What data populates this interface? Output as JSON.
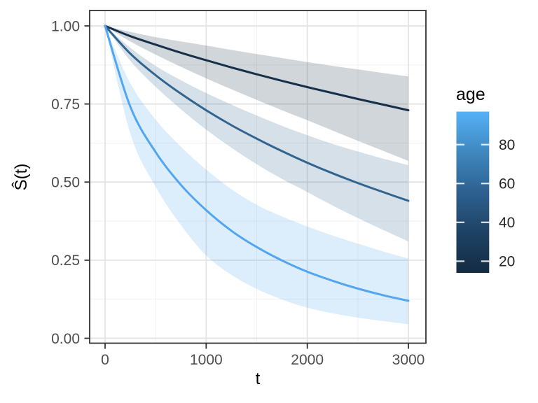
{
  "figure": {
    "background": "#FFFFFF",
    "panel_border_color": "#333333",
    "grid_major_color": "#E3E3E3",
    "grid_minor_color": "#F1F1F1"
  },
  "chart_data": {
    "type": "line",
    "title": "",
    "xlabel": "t",
    "ylabel": "Ŝ(t)",
    "grid": "major+minor",
    "x_axis": {
      "tick_values": [
        0,
        1000,
        2000,
        3000
      ],
      "tick_labels": [
        "0",
        "1000",
        "2000",
        "3000"
      ],
      "minor_tick_values": [
        500,
        1500,
        2500
      ],
      "range_shown": [
        0,
        3000
      ]
    },
    "y_axis": {
      "tick_values": [
        0,
        0.25,
        0.5,
        0.75,
        1.0
      ],
      "tick_labels": [
        "0.00",
        "0.25",
        "0.50",
        "0.75",
        "1.00"
      ],
      "minor_tick_values": [
        0.125,
        0.375,
        0.625,
        0.875
      ],
      "range_shown": [
        0,
        1
      ]
    },
    "legend": {
      "title": "age",
      "position": "right",
      "type": "colorbar",
      "tick_values": [
        20,
        40,
        60,
        80
      ],
      "tick_labels": [
        "20",
        "40",
        "60",
        "80"
      ],
      "bar_value_range": [
        14,
        97
      ],
      "gradient_low": "#132B43",
      "gradient_high": "#56B1F7",
      "gradient_stops": [
        "#132B43",
        "#1E4263",
        "#2E6090",
        "#3F88BF",
        "#56B1F7"
      ]
    },
    "x": [
      0,
      250,
      500,
      750,
      1000,
      1250,
      1500,
      1750,
      2000,
      2250,
      2500,
      2750,
      3000
    ],
    "series": [
      {
        "name": "survival-curve-low-age-dark",
        "color": "#17304A",
        "ribbon_opacity": 0.2,
        "values": [
          1.0,
          0.967,
          0.94,
          0.914,
          0.89,
          0.867,
          0.845,
          0.824,
          0.804,
          0.785,
          0.766,
          0.748,
          0.73
        ],
        "upper": [
          1.0,
          0.981,
          0.964,
          0.95,
          0.937,
          0.923,
          0.91,
          0.897,
          0.884,
          0.872,
          0.861,
          0.849,
          0.838
        ],
        "lower": [
          1.0,
          0.95,
          0.908,
          0.869,
          0.832,
          0.797,
          0.763,
          0.73,
          0.698,
          0.665,
          0.632,
          0.6,
          0.568
        ]
      },
      {
        "name": "survival-curve-mid-age-medium",
        "color": "#31648F",
        "ribbon_opacity": 0.2,
        "values": [
          1.0,
          0.911,
          0.842,
          0.783,
          0.73,
          0.682,
          0.639,
          0.599,
          0.562,
          0.528,
          0.497,
          0.468,
          0.44
        ],
        "upper": [
          1.0,
          0.93,
          0.872,
          0.826,
          0.785,
          0.748,
          0.713,
          0.68,
          0.65,
          0.622,
          0.598,
          0.575,
          0.554
        ],
        "lower": [
          1.0,
          0.888,
          0.805,
          0.733,
          0.668,
          0.61,
          0.557,
          0.51,
          0.468,
          0.425,
          0.385,
          0.347,
          0.31
        ]
      },
      {
        "name": "survival-curve-high-age-light",
        "color": "#52A5F0",
        "ribbon_opacity": 0.2,
        "values": [
          1.0,
          0.741,
          0.596,
          0.491,
          0.41,
          0.344,
          0.292,
          0.249,
          0.213,
          0.184,
          0.159,
          0.138,
          0.12
        ],
        "upper": [
          1.0,
          0.816,
          0.7,
          0.613,
          0.54,
          0.477,
          0.427,
          0.39,
          0.358,
          0.329,
          0.303,
          0.278,
          0.255
        ],
        "lower": [
          1.0,
          0.655,
          0.485,
          0.362,
          0.265,
          0.203,
          0.158,
          0.124,
          0.098,
          0.08,
          0.066,
          0.055,
          0.045
        ]
      }
    ]
  }
}
